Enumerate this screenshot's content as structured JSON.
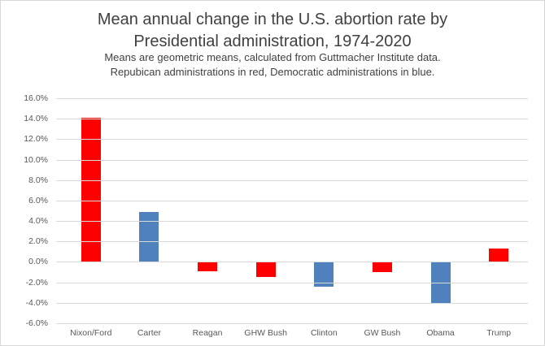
{
  "header": {
    "title_line1": "Mean annual change in the U.S. abortion rate by",
    "title_line2": "Presidential administration, 1974-2020",
    "subtitle_line1": "Means are geometric means, calculated from Guttmacher Institute data.",
    "subtitle_line2": "Repubican administrations in red, Democratic administrations in blue."
  },
  "chart_data": {
    "type": "bar",
    "title": "Mean annual change in the U.S. abortion rate by Presidential administration, 1974-2020",
    "subtitle": "Means are geometric means, calculated from Guttmacher Institute data. Repubican administrations in red, Democratic administrations in blue.",
    "categories": [
      "Nixon/Ford",
      "Carter",
      "Reagan",
      "GHW Bush",
      "Clinton",
      "GW Bush",
      "Obama",
      "Trump"
    ],
    "values": [
      14.1,
      4.9,
      -0.9,
      -1.5,
      -2.4,
      -1.0,
      -4.1,
      1.3
    ],
    "unit": "%",
    "party": [
      "Republican",
      "Democratic",
      "Republican",
      "Republican",
      "Democratic",
      "Republican",
      "Democratic",
      "Republican"
    ],
    "bar_colors": [
      "#ff0000",
      "#4f81bd",
      "#ff0000",
      "#ff0000",
      "#4f81bd",
      "#ff0000",
      "#4f81bd",
      "#ff0000"
    ],
    "republican_color": "#ff0000",
    "democratic_color": "#4f81bd",
    "xlabel": "",
    "ylabel": "",
    "ylim": [
      -6,
      16
    ],
    "ytick_step": 2,
    "ytick_labels": [
      "16.0%",
      "14.0%",
      "12.0%",
      "10.0%",
      "8.0%",
      "6.0%",
      "4.0%",
      "2.0%",
      "0.0%",
      "-2.0%",
      "-4.0%",
      "-6.0%"
    ],
    "grid": true,
    "gridline_color": "#d9d9d9",
    "axis_text_color": "#595959",
    "legend": "none"
  }
}
